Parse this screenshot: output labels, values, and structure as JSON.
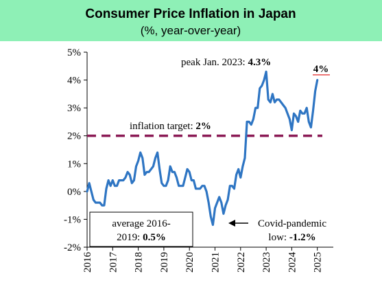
{
  "header": {
    "title": "Consumer Price Inflation in Japan",
    "subtitle": "(%, year-over-year)",
    "background": "#8ef0b6"
  },
  "chart_data": {
    "type": "line",
    "title": "Consumer Price Inflation in Japan",
    "subtitle": "(%, year-over-year)",
    "ylim": [
      -2,
      5
    ],
    "xlim": [
      "2016-01",
      "2025-03"
    ],
    "y_ticks": [
      "-2%",
      "-1%",
      "0%",
      "1%",
      "2%",
      "3%",
      "4%",
      "5%"
    ],
    "x_ticks": [
      "2016",
      "2017",
      "2018",
      "2019",
      "2020",
      "2021",
      "2022",
      "2023",
      "2024",
      "2025"
    ],
    "grid": false,
    "series": [
      {
        "color": "#2e75c3",
        "x_start": "2016-01",
        "frequency": "monthly",
        "values": [
          0.0,
          0.3,
          0.0,
          -0.3,
          -0.4,
          -0.4,
          -0.4,
          -0.5,
          -0.5,
          0.1,
          0.4,
          0.2,
          0.4,
          0.2,
          0.2,
          0.4,
          0.4,
          0.4,
          0.5,
          0.7,
          0.6,
          0.3,
          0.4,
          0.9,
          1.1,
          1.4,
          1.2,
          0.6,
          0.7,
          0.7,
          0.8,
          0.9,
          1.2,
          1.4,
          0.8,
          0.3,
          0.2,
          0.2,
          0.4,
          0.9,
          0.7,
          0.7,
          0.5,
          0.2,
          0.2,
          0.2,
          0.5,
          0.8,
          0.7,
          0.4,
          0.4,
          0.1,
          0.1,
          0.1,
          0.2,
          0.2,
          0.0,
          -0.4,
          -0.9,
          -1.2,
          -0.6,
          -0.4,
          -0.2,
          -0.4,
          -0.8,
          -0.5,
          -0.3,
          0.2,
          0.2,
          0.1,
          0.6,
          0.8,
          0.5,
          0.9,
          1.2,
          2.5,
          2.5,
          2.4,
          2.6,
          3.0,
          3.0,
          3.7,
          3.8,
          4.0,
          4.3,
          3.3,
          3.2,
          3.5,
          3.2,
          3.3,
          3.3,
          3.2,
          3.1,
          3.0,
          2.8,
          2.6,
          2.2,
          2.8,
          2.7,
          2.5,
          2.9,
          2.8,
          2.8,
          3.0,
          2.5,
          2.3,
          2.9,
          3.6,
          4.0
        ]
      },
      {
        "name": "inflation target",
        "color": "#8b1a55",
        "style": "dashed",
        "values": [
          2.0
        ]
      }
    ],
    "annotations": {
      "target": {
        "text": "inflation target: ",
        "value": "2%"
      },
      "peak": {
        "text": "peak Jan. 2023: ",
        "value": "4.3%"
      },
      "latest": {
        "text": "4%",
        "color": "#e02020"
      },
      "average": {
        "line1": "average 2016-",
        "line2": "2019: ",
        "value": "0.5%"
      },
      "covid": {
        "line1": "Covid-pandemic",
        "line2": "low: ",
        "value": "-1.2%"
      }
    }
  }
}
